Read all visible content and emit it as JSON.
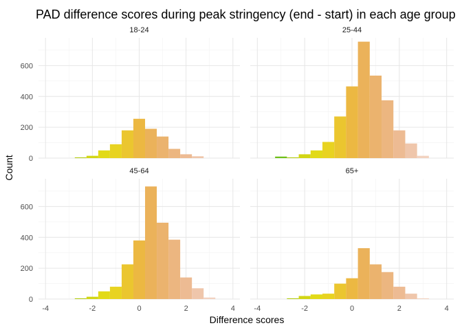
{
  "chart_data": {
    "type": "bar",
    "title": "PAD difference scores during peak stringency (end - start) in each age group",
    "xlabel": "Difference scores",
    "ylabel": "Count",
    "xlim": [
      -4.3,
      4.3
    ],
    "ylim": [
      0,
      780
    ],
    "x_ticks": [
      -4,
      -2,
      0,
      2,
      4
    ],
    "y_ticks": [
      0,
      200,
      400,
      600
    ],
    "grid": true,
    "bin_width": 0.5,
    "bin_centers": [
      -3.5,
      -3,
      -2.5,
      -2,
      -1.5,
      -1,
      -0.5,
      0,
      0.5,
      1,
      1.5,
      2,
      2.5,
      3
    ],
    "colors": [
      "#14a014",
      "#6fbf1a",
      "#b4cd14",
      "#d2d614",
      "#e2da18",
      "#e8d321",
      "#ebc62f",
      "#ecb842",
      "#ebb25a",
      "#ebb36e",
      "#ecb680",
      "#edbb93",
      "#efc6ab",
      "#f2d2c0"
    ],
    "panels": [
      {
        "label": "18-24",
        "values": [
          0,
          0,
          5,
          15,
          50,
          90,
          180,
          255,
          190,
          140,
          60,
          25,
          12,
          0
        ]
      },
      {
        "label": "25-44",
        "values": [
          0,
          10,
          5,
          25,
          50,
          105,
          270,
          465,
          755,
          535,
          375,
          180,
          95,
          15
        ]
      },
      {
        "label": "45-64",
        "values": [
          0,
          0,
          5,
          15,
          50,
          80,
          225,
          380,
          730,
          495,
          385,
          140,
          70,
          10
        ]
      },
      {
        "label": "65+",
        "values": [
          0,
          0,
          5,
          20,
          30,
          35,
          100,
          135,
          330,
          225,
          175,
          80,
          35,
          5
        ]
      }
    ]
  }
}
